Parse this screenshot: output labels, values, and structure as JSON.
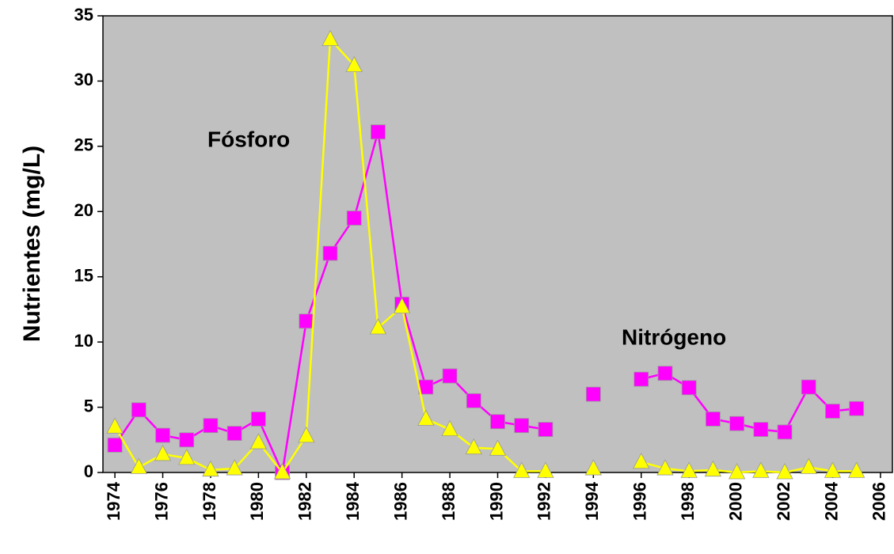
{
  "chart_data": {
    "type": "line",
    "y_label": "Nutrientes (mg/L)",
    "x": [
      1974,
      1975,
      1976,
      1977,
      1978,
      1979,
      1980,
      1981,
      1982,
      1983,
      1984,
      1985,
      1986,
      1987,
      1988,
      1989,
      1990,
      1991,
      1992,
      1993,
      1994,
      1995,
      1996,
      1997,
      1998,
      1999,
      2000,
      2001,
      2002,
      2003,
      2004,
      2005
    ],
    "series": [
      {
        "name": "Nitrógeno",
        "color": "#ff00ff",
        "marker": "square",
        "values": [
          2.1,
          4.8,
          2.85,
          2.5,
          3.6,
          3.0,
          4.1,
          0,
          11.6,
          16.8,
          19.5,
          26.1,
          12.9,
          6.55,
          7.4,
          5.5,
          3.9,
          3.6,
          3.3,
          null,
          6.0,
          null,
          7.15,
          7.6,
          6.5,
          4.1,
          3.75,
          3.3,
          3.1,
          6.55,
          4.7,
          4.9
        ]
      },
      {
        "name": "Fósforo",
        "color": "#ffff00",
        "marker": "triangle",
        "values": [
          3.5,
          0.4,
          1.4,
          1.1,
          0.2,
          0.3,
          2.3,
          0,
          2.8,
          33.2,
          31.2,
          11.1,
          12.7,
          4.1,
          3.3,
          1.9,
          1.8,
          0.1,
          0.1,
          null,
          0.3,
          null,
          0.8,
          0.3,
          0.1,
          0.2,
          0,
          0.1,
          0,
          0.4,
          0.1,
          0.1
        ]
      }
    ],
    "xlim": [
      1973.5,
      2006.5
    ],
    "xticks": [
      1974,
      1976,
      1978,
      1980,
      1982,
      1984,
      1986,
      1988,
      1990,
      1992,
      1994,
      1996,
      1998,
      2000,
      2002,
      2004,
      2006
    ],
    "ylim": [
      0,
      35
    ],
    "yticks": [
      0,
      5,
      10,
      15,
      20,
      25,
      30,
      35
    ],
    "background": "#c0c0c0"
  }
}
